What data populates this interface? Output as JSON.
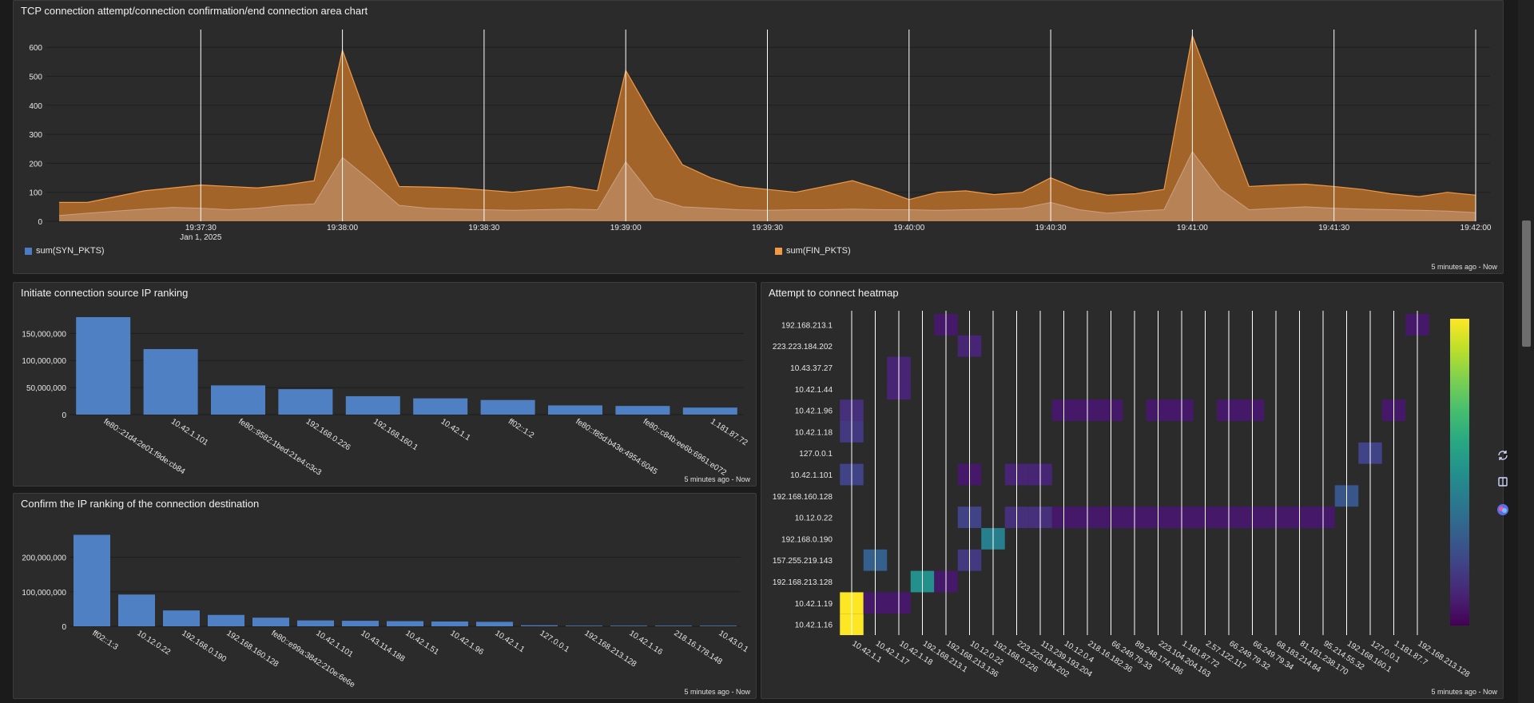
{
  "panels": {
    "area": {
      "title": "TCP connection attempt/connection confirmation/end connection area chart",
      "footer": "5 minutes ago - Now"
    },
    "src": {
      "title": "Initiate connection source IP ranking",
      "footer": "5 minutes ago - Now"
    },
    "dst": {
      "title": "Confirm the IP ranking of the connection destination",
      "footer": "5 minutes ago - Now"
    },
    "heat": {
      "title": "Attempt to connect heatmap",
      "footer": "5 minutes ago - Now"
    }
  },
  "legend": {
    "syn": "sum(SYN_PKTS)",
    "fin": "sum(FIN_PKTS)"
  },
  "colors": {
    "syn": "#4a7cc1",
    "fin": "#f09a46",
    "bar": "#4f80c3"
  },
  "icons": [
    "refresh-icon",
    "book-icon",
    "plugin-icon"
  ],
  "chart_data": [
    {
      "type": "area",
      "title": "TCP connection attempt/connection confirmation/end connection area chart",
      "ylim": [
        0,
        650
      ],
      "y_ticks": [
        0,
        100,
        200,
        300,
        400,
        500,
        600
      ],
      "x_start": "19:37:00",
      "x_step_seconds": 6,
      "x_ticks": [
        {
          "label": "19:37:30",
          "sublabel": "Jan 1, 2025",
          "index": 5
        },
        {
          "label": "19:38:00",
          "index": 10
        },
        {
          "label": "19:38:30",
          "index": 15
        },
        {
          "label": "19:39:00",
          "index": 20
        },
        {
          "label": "19:39:30",
          "index": 25
        },
        {
          "label": "19:40:00",
          "index": 30
        },
        {
          "label": "19:40:30",
          "index": 35
        },
        {
          "label": "19:41:00",
          "index": 40
        },
        {
          "label": "19:41:30",
          "index": 45
        },
        {
          "label": "19:42:00",
          "index": 50
        }
      ],
      "series": [
        {
          "name": "sum(SYN_PKTS)",
          "values": [
            20,
            28,
            35,
            42,
            48,
            45,
            40,
            45,
            55,
            60,
            220,
            140,
            55,
            45,
            42,
            40,
            38,
            40,
            42,
            40,
            205,
            80,
            50,
            45,
            40,
            38,
            40,
            40,
            42,
            40,
            40,
            38,
            40,
            42,
            45,
            65,
            40,
            28,
            35,
            40,
            240,
            110,
            40,
            45,
            50,
            45,
            42,
            40,
            38,
            35,
            30
          ]
        },
        {
          "name": "sum(FIN_PKTS)",
          "values": [
            65,
            65,
            85,
            105,
            115,
            125,
            120,
            115,
            125,
            140,
            590,
            320,
            120,
            118,
            115,
            108,
            100,
            110,
            120,
            105,
            520,
            350,
            195,
            150,
            120,
            110,
            100,
            120,
            140,
            110,
            75,
            100,
            105,
            92,
            100,
            150,
            110,
            90,
            95,
            110,
            640,
            380,
            120,
            125,
            128,
            120,
            110,
            95,
            85,
            100,
            90
          ]
        }
      ]
    },
    {
      "type": "bar",
      "title": "Initiate connection source IP ranking",
      "categories": [
        "fe80::21d4:2e01:f9de:cb84",
        "10.42.1.101",
        "fe80::9582:1bed:21e4:c3c3",
        "192.168.0.226",
        "192.168.160.1",
        "10.42.1.1",
        "ff02::1:2",
        "fe80::f85d:b43e:4954:6045",
        "fe80::c84b:ee6b:6961:e072",
        "1.181.87.72"
      ],
      "values": [
        180000000,
        121000000,
        54000000,
        47000000,
        34000000,
        30000000,
        27000000,
        17000000,
        16000000,
        13000000
      ],
      "ylim": [
        0,
        180000000
      ],
      "y_ticks": [
        0,
        50000000,
        100000000,
        150000000
      ],
      "y_tick_labels": [
        "0",
        "50,000,000",
        "100,000,000",
        "150,000,000"
      ]
    },
    {
      "type": "bar",
      "title": "Confirm the IP ranking of the connection destination",
      "categories": [
        "ff02::1:3",
        "10.12.0.22",
        "192.168.0.190",
        "192.168.160.128",
        "fe80::e99a:3842:210e:6e6e",
        "10.42.1.101",
        "10.43.114.188",
        "10.42.1.51",
        "10.42.1.96",
        "10.42.1.1",
        "127.0.0.1",
        "192.168.213.128",
        "10.42.1.16",
        "218.16.178.148",
        "10.43.0.1"
      ],
      "values": [
        265000000,
        92000000,
        46000000,
        33000000,
        25000000,
        17000000,
        16000000,
        15000000,
        14000000,
        13000000,
        3000000,
        1500000,
        1000000,
        800000,
        500000
      ],
      "ylim": [
        0,
        280000000
      ],
      "y_ticks": [
        0,
        100000000,
        200000000
      ],
      "y_tick_labels": [
        "0",
        "100,000,000",
        "200,000,000"
      ]
    },
    {
      "type": "heatmap",
      "title": "Attempt to connect heatmap",
      "y_categories": [
        "192.168.213.1",
        "223.223.184.202",
        "10.43.37.27",
        "10.42.1.44",
        "10.42.1.96",
        "10.42.1.18",
        "127.0.0.1",
        "10.42.1.101",
        "192.168.160.128",
        "10.12.0.22",
        "192.168.0.190",
        "157.255.219.143",
        "192.168.213.128",
        "10.42.1.19",
        "10.42.1.16"
      ],
      "x_categories": [
        "10.42.1.1",
        "10.42.1.17",
        "10.42.1.18",
        "192.168.213.1",
        "192.168.213.136",
        "10.12.0.22",
        "192.168.0.226",
        "223.223.184.202",
        "113.239.193.204",
        "10.12.0.4",
        "218.16.182.36",
        "66.249.79.33",
        "89.248.174.186",
        "223.104.204.163",
        "1.181.87.72",
        "2.57.122.117",
        "66.249.79.32",
        "66.249.79.34",
        "68.183.214.84",
        "81.161.238.170",
        "95.214.55.32",
        "192.168.160.1",
        "127.0.0.1",
        "1.181.87.7",
        "192.168.213.128"
      ],
      "cells": [
        [
          0,
          4,
          2
        ],
        [
          0,
          24,
          2
        ],
        [
          1,
          5,
          3
        ],
        [
          2,
          2,
          3
        ],
        [
          3,
          2,
          3
        ],
        [
          4,
          0,
          4
        ],
        [
          4,
          9,
          2
        ],
        [
          4,
          10,
          2
        ],
        [
          4,
          11,
          2
        ],
        [
          4,
          13,
          2
        ],
        [
          4,
          14,
          2
        ],
        [
          4,
          16,
          2
        ],
        [
          4,
          17,
          2
        ],
        [
          4,
          23,
          2
        ],
        [
          5,
          0,
          5
        ],
        [
          6,
          22,
          6
        ],
        [
          7,
          0,
          6
        ],
        [
          7,
          5,
          2
        ],
        [
          7,
          7,
          3
        ],
        [
          7,
          8,
          3
        ],
        [
          8,
          21,
          8
        ],
        [
          9,
          5,
          6
        ],
        [
          9,
          7,
          4
        ],
        [
          9,
          8,
          4
        ],
        [
          9,
          9,
          2
        ],
        [
          9,
          10,
          2
        ],
        [
          9,
          11,
          2
        ],
        [
          9,
          12,
          2
        ],
        [
          9,
          13,
          2
        ],
        [
          9,
          14,
          2
        ],
        [
          9,
          15,
          2
        ],
        [
          9,
          16,
          2
        ],
        [
          9,
          17,
          2
        ],
        [
          9,
          18,
          2
        ],
        [
          9,
          19,
          2
        ],
        [
          9,
          20,
          2
        ],
        [
          10,
          6,
          13
        ],
        [
          11,
          1,
          9
        ],
        [
          11,
          5,
          5
        ],
        [
          12,
          3,
          15
        ],
        [
          12,
          4,
          2
        ],
        [
          13,
          0,
          30
        ],
        [
          13,
          1,
          2
        ],
        [
          13,
          2,
          2
        ],
        [
          14,
          0,
          30
        ]
      ],
      "colorbar": {
        "min": 0,
        "max": 30,
        "ticks": [
          5,
          10,
          15,
          20,
          25,
          30
        ]
      }
    }
  ]
}
